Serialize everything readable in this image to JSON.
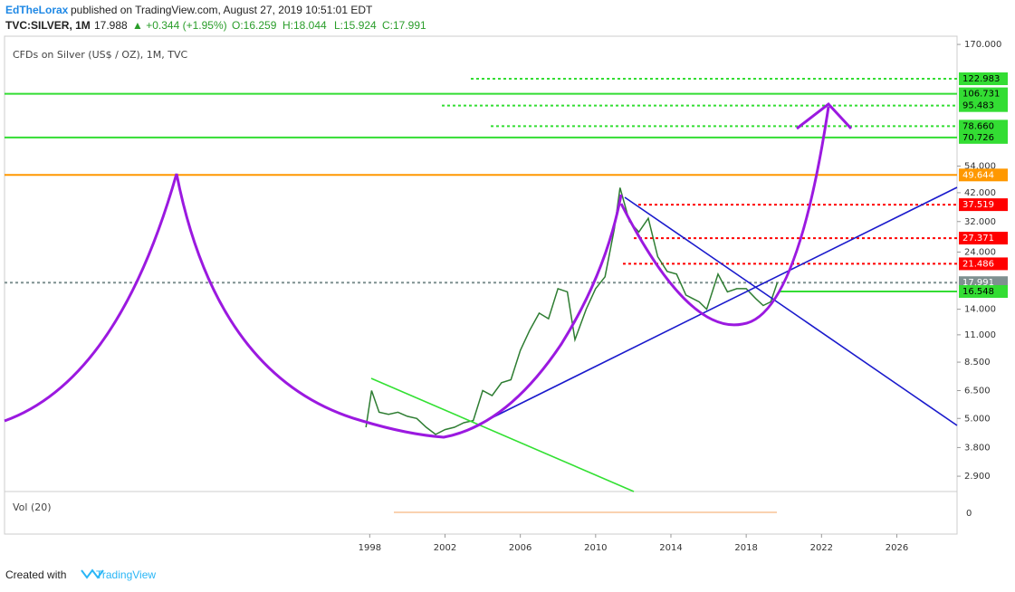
{
  "header": {
    "author": "EdTheLorax",
    "published": "published on TradingView.com, August 27, 2019 10:51:01 EDT",
    "symbol": "TVC:SILVER, 1M",
    "last": "17.988",
    "change": "▲ +0.344 (+1.95%)",
    "open": "O:16.259",
    "high": "H:18.044",
    "low": "L:15.924",
    "close": "C:17.991"
  },
  "chart_data": {
    "type": "line",
    "title": "CFDs on Silver (US$ / OZ), 1M, TVC",
    "log_scale": true,
    "color": "#2e7d32",
    "x": [
      1997.8,
      1998.1,
      1998.5,
      1999,
      1999.5,
      2000,
      2000.5,
      2001,
      2001.5,
      2002,
      2002.5,
      2003,
      2003.5,
      2004,
      2004.5,
      2005,
      2005.5,
      2006,
      2006.5,
      2007,
      2007.5,
      2008,
      2008.5,
      2008.9,
      2009.5,
      2010,
      2010.5,
      2011,
      2011.3,
      2011.8,
      2012.3,
      2012.8,
      2013.3,
      2013.8,
      2014.3,
      2014.8,
      2015.5,
      2015.9,
      2016.5,
      2017,
      2017.5,
      2018,
      2018.5,
      2018.9,
      2019.3,
      2019.65
    ],
    "values": [
      4.6,
      6.5,
      5.3,
      5.2,
      5.3,
      5.1,
      5.0,
      4.6,
      4.3,
      4.5,
      4.6,
      4.8,
      4.9,
      6.5,
      6.2,
      7.0,
      7.2,
      9.5,
      11.5,
      13.5,
      12.8,
      17.0,
      16.5,
      10.5,
      14.0,
      17.0,
      19.0,
      30.0,
      44.0,
      32.0,
      29.0,
      33.0,
      23.0,
      20.0,
      19.5,
      16.0,
      15.0,
      14.0,
      19.5,
      16.5,
      17.0,
      17.0,
      15.5,
      14.5,
      15.0,
      17.99
    ],
    "xlim": [
      1978.6,
      2029.2
    ],
    "ylim": [
      2.51,
      183.7
    ],
    "xticks": [
      1998,
      2002,
      2006,
      2010,
      2014,
      2018,
      2022,
      2026
    ],
    "yticks": [
      {
        "value": 170,
        "label": "170.000"
      },
      {
        "value": 54,
        "label": "54.000"
      },
      {
        "value": 42,
        "label": "42.000"
      },
      {
        "value": 32,
        "label": "32.000"
      },
      {
        "value": 24,
        "label": "24.000"
      },
      {
        "value": 14,
        "label": "14.000"
      },
      {
        "value": 11,
        "label": "11.000"
      },
      {
        "value": 8.5,
        "label": "8.500"
      },
      {
        "value": 6.5,
        "label": "6.500"
      },
      {
        "value": 5,
        "label": "5.000"
      },
      {
        "value": 3.8,
        "label": "3.800"
      },
      {
        "value": 2.9,
        "label": "2.900"
      }
    ],
    "price_levels": [
      {
        "value": 122.983,
        "label": "122.983",
        "color": "#33dd33",
        "style": "dotted"
      },
      {
        "value": 106.731,
        "label": "106.731",
        "color": "#33dd33",
        "style": "solid"
      },
      {
        "value": 95.483,
        "label": "95.483",
        "color": "#33dd33",
        "style": "dotted"
      },
      {
        "value": 78.66,
        "label": "78.660",
        "color": "#33dd33",
        "style": "dotted"
      },
      {
        "value": 70.726,
        "label": "70.726",
        "color": "#33dd33",
        "style": "solid"
      },
      {
        "value": 49.644,
        "label": "49.644",
        "color": "#ff9800",
        "style": "solid"
      },
      {
        "value": 37.519,
        "label": "37.519",
        "color": "#ff0000",
        "style": "dotted"
      },
      {
        "value": 27.371,
        "label": "27.371",
        "color": "#ff0000",
        "style": "dotted"
      },
      {
        "value": 21.486,
        "label": "21.486",
        "color": "#ff0000",
        "style": "dotted"
      },
      {
        "value": 17.991,
        "label": "17.991",
        "color": "#7f9090",
        "style": "dotted"
      },
      {
        "value": 16.548,
        "label": "16.548",
        "color": "#33dd33",
        "style": "solid"
      }
    ],
    "volume": {
      "label": "Vol (20)",
      "yticks": [
        0
      ]
    }
  },
  "footer": {
    "text": "Created with",
    "brand": "TradingView"
  }
}
